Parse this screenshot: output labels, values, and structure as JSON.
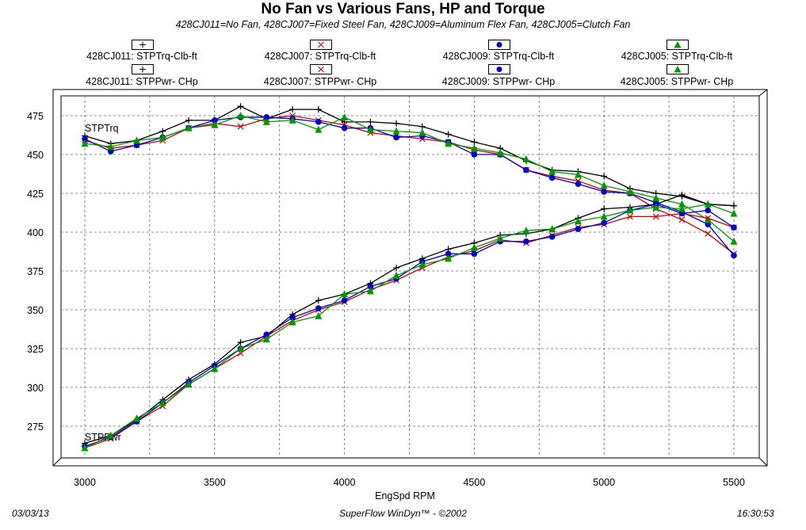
{
  "title": "No Fan vs Various Fans, HP and Torque",
  "subtitle": "428CJ011=No Fan, 428CJ007=Fixed Steel Fan, 428CJ009=Aluminum Flex Fan, 428CJ005=Clutch Fan",
  "legend": [
    {
      "name": "428CJ011: STPTrq-Clb-ft",
      "color": "#000000",
      "marker": "plus"
    },
    {
      "name": "428CJ007: STPTrq-Clb-ft",
      "color": "#cc0000",
      "marker": "x"
    },
    {
      "name": "428CJ009: STPTrq-Clb-ft",
      "color": "#0000cc",
      "marker": "circle"
    },
    {
      "name": "428CJ005: STPTrq-Clb-ft",
      "color": "#009900",
      "marker": "triangle"
    },
    {
      "name": "428CJ011: STPPwr- CHp",
      "color": "#000000",
      "marker": "plus"
    },
    {
      "name": "428CJ007: STPPwr- CHp",
      "color": "#cc0000",
      "marker": "x"
    },
    {
      "name": "428CJ009: STPPwr- CHp",
      "color": "#0000cc",
      "marker": "circle"
    },
    {
      "name": "428CJ005: STPPwr- CHp",
      "color": "#009900",
      "marker": "triangle"
    }
  ],
  "footer": {
    "date": "03/03/13",
    "software": "SuperFlow WinDyn™ - ©2002",
    "time": "16:30:53"
  },
  "chart_data": {
    "type": "line",
    "title": "No Fan vs Various Fans, HP and Torque",
    "xlabel": "EngSpd  RPM",
    "ylabel": "",
    "xlim": [
      2880,
      5620
    ],
    "ylim": [
      250,
      490
    ],
    "xticks": [
      3000,
      3500,
      4000,
      4500,
      5000,
      5500
    ],
    "yticks": [
      275,
      300,
      325,
      350,
      375,
      400,
      425,
      450,
      475
    ],
    "grid": true,
    "legend_position": "top",
    "annotations": [
      "STPTrq",
      "STPPwr"
    ],
    "x": [
      3000,
      3100,
      3200,
      3300,
      3400,
      3500,
      3600,
      3700,
      3800,
      3900,
      4000,
      4100,
      4200,
      4300,
      4400,
      4500,
      4600,
      4700,
      4800,
      4900,
      5000,
      5100,
      5200,
      5300,
      5400,
      5500
    ],
    "series": [
      {
        "name": "428CJ011: STPTrq-Clb-ft",
        "color": "#000000",
        "marker": "plus",
        "values": [
          462,
          457,
          459,
          465,
          472,
          472,
          481,
          473,
          479,
          479,
          471,
          471,
          470,
          468,
          463,
          458,
          454,
          446,
          440,
          439,
          436,
          428,
          425,
          423,
          418,
          417
        ]
      },
      {
        "name": "428CJ007: STPTrq-Clb-ft",
        "color": "#cc0000",
        "marker": "x",
        "values": [
          459,
          454,
          456,
          459,
          467,
          470,
          468,
          473,
          475,
          472,
          469,
          464,
          462,
          460,
          458,
          453,
          450,
          440,
          436,
          433,
          427,
          425,
          415,
          408,
          399,
          386
        ]
      },
      {
        "name": "428CJ009: STPTrq-Clb-ft",
        "color": "#0000cc",
        "marker": "circle",
        "values": [
          460,
          452,
          456,
          461,
          467,
          472,
          474,
          474,
          473,
          471,
          467,
          467,
          461,
          462,
          458,
          450,
          450,
          440,
          435,
          431,
          426,
          425,
          419,
          413,
          405,
          385
        ]
      },
      {
        "name": "428CJ005: STPTrq-Clb-ft",
        "color": "#009900",
        "marker": "triangle",
        "values": [
          457,
          455,
          459,
          461,
          467,
          469,
          475,
          471,
          472,
          466,
          474,
          466,
          465,
          464,
          457,
          454,
          451,
          447,
          439,
          437,
          430,
          426,
          422,
          418,
          408,
          394
        ]
      },
      {
        "name": "428CJ011: STPPwr- CHp",
        "color": "#000000",
        "marker": "plus",
        "values": [
          264,
          269,
          279,
          292,
          305,
          315,
          329,
          333,
          347,
          356,
          360,
          367,
          377,
          383,
          389,
          393,
          398,
          399,
          402,
          409,
          415,
          416,
          418,
          424,
          418,
          417
        ]
      },
      {
        "name": "428CJ007: STPPwr- CHp",
        "color": "#cc0000",
        "marker": "x",
        "values": [
          261,
          267,
          278,
          288,
          302,
          312,
          322,
          333,
          343,
          350,
          355,
          363,
          369,
          377,
          384,
          388,
          395,
          393,
          398,
          403,
          405,
          410,
          410,
          412,
          409,
          403
        ]
      },
      {
        "name": "428CJ009: STPPwr- CHp",
        "color": "#0000cc",
        "marker": "circle",
        "values": [
          262,
          268,
          278,
          290,
          303,
          314,
          325,
          334,
          345,
          351,
          356,
          365,
          370,
          381,
          386,
          386,
          394,
          394,
          397,
          402,
          406,
          414,
          418,
          412,
          414,
          403
        ]
      },
      {
        "name": "428CJ005: STPPwr- CHp",
        "color": "#009900",
        "marker": "triangle",
        "values": [
          261,
          269,
          280,
          290,
          302,
          312,
          325,
          331,
          342,
          346,
          360,
          362,
          372,
          379,
          383,
          390,
          396,
          401,
          402,
          407,
          410,
          414,
          416,
          415,
          418,
          412
        ]
      }
    ]
  }
}
